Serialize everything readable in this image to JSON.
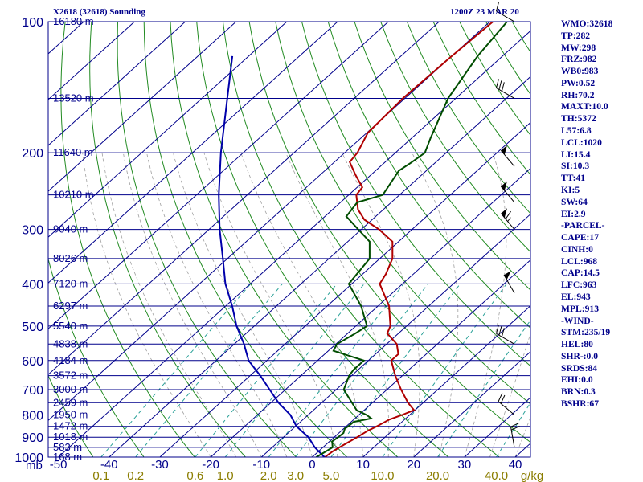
{
  "header": {
    "title": "X2618 (32618) Sounding",
    "valid_time": "1200Z 23 MAR 20"
  },
  "indices": [
    "WMO:32618",
    "TP:282",
    "MW:298",
    "FRZ:982",
    "WB0:983",
    "PW:0.52",
    "RH:70.2",
    "MAXT:10.0",
    "TH:5372",
    "L57:6.8",
    "LCL:1020",
    "LI:15.4",
    "SI:10.3",
    "TT:41",
    "KI:5",
    "SW:64",
    "EI:2.9",
    "-PARCEL-",
    "CAPE:17",
    "CINH:0",
    "LCL:968",
    "CAP:14.5",
    "LFC:963",
    "EL:943",
    "MPL:913",
    "-WIND-",
    "STM:235/19",
    "HEL:80",
    "SHR-:0.0",
    "SRDS:84",
    "EHI:0.0",
    "BRN:0.3",
    "BSHR:67"
  ],
  "colors": {
    "isobar": "#00008b",
    "isotherm": "#00008b",
    "dry_adiabat": "#228b22",
    "moist_adiabat": "#a0a0a0",
    "mixing_ratio": "#2aa198",
    "temperature": "#b00000",
    "dewpoint": "#004d00",
    "parcel": "#0000aa",
    "label": "#00008b",
    "mixing_label": "#8b7d00"
  },
  "chart_data": {
    "type": "skew-t",
    "title": "X2618 (32618) Sounding",
    "pressure_axis": {
      "unit": "mb",
      "range": [
        1000,
        100
      ],
      "ticks": [
        100,
        200,
        300,
        400,
        500,
        600,
        700,
        800,
        900,
        1000
      ]
    },
    "temperature_axis": {
      "ticks": [
        -50,
        -40,
        -30,
        -20,
        -10,
        0,
        10,
        20,
        30,
        40
      ],
      "range_at_1000mb": [
        -52,
        43
      ]
    },
    "mixing_ratio_axis": {
      "unit": "g/kg",
      "ticks": [
        "0.1",
        "0.2",
        "0.6",
        "1.0",
        "2.0",
        "3.0",
        "5.0",
        "10.0",
        "20.0",
        "40.0"
      ]
    },
    "height_labels": [
      {
        "p": 1000,
        "h": "168 m"
      },
      {
        "p": 950,
        "h": "583 m"
      },
      {
        "p": 900,
        "h": "1018 m"
      },
      {
        "p": 850,
        "h": "1472 m"
      },
      {
        "p": 800,
        "h": "1950 m"
      },
      {
        "p": 750,
        "h": "2459 m"
      },
      {
        "p": 700,
        "h": "3000 m"
      },
      {
        "p": 650,
        "h": "3572 m"
      },
      {
        "p": 600,
        "h": "4184 m"
      },
      {
        "p": 550,
        "h": "4838 m"
      },
      {
        "p": 500,
        "h": "5540 m"
      },
      {
        "p": 450,
        "h": "6297 m"
      },
      {
        "p": 400,
        "h": "7120 m"
      },
      {
        "p": 350,
        "h": "8026 m"
      },
      {
        "p": 300,
        "h": "9040 m"
      },
      {
        "p": 250,
        "h": "10210 m"
      },
      {
        "p": 200,
        "h": "11640 m"
      },
      {
        "p": 150,
        "h": "13520 m"
      },
      {
        "p": 100,
        "h": "16180 m"
      }
    ],
    "temperature_profile": [
      {
        "p": 1000,
        "t": 2.5
      },
      {
        "p": 970,
        "t": 2.8
      },
      {
        "p": 940,
        "t": 3.5
      },
      {
        "p": 900,
        "t": 4.5
      },
      {
        "p": 870,
        "t": 5.2
      },
      {
        "p": 850,
        "t": 6.0
      },
      {
        "p": 820,
        "t": 7.0
      },
      {
        "p": 800,
        "t": 8.5
      },
      {
        "p": 780,
        "t": 9.8
      },
      {
        "p": 750,
        "t": 7.0
      },
      {
        "p": 700,
        "t": 2.8
      },
      {
        "p": 650,
        "t": -1.4
      },
      {
        "p": 600,
        "t": -5.5
      },
      {
        "p": 580,
        "t": -5.5
      },
      {
        "p": 550,
        "t": -8.0
      },
      {
        "p": 520,
        "t": -12.2
      },
      {
        "p": 500,
        "t": -13.2
      },
      {
        "p": 450,
        "t": -17.8
      },
      {
        "p": 400,
        "t": -24.5
      },
      {
        "p": 380,
        "t": -25.4
      },
      {
        "p": 350,
        "t": -27.5
      },
      {
        "p": 320,
        "t": -31.2
      },
      {
        "p": 300,
        "t": -36.5
      },
      {
        "p": 285,
        "t": -41.5
      },
      {
        "p": 270,
        "t": -45.0
      },
      {
        "p": 250,
        "t": -48.5
      },
      {
        "p": 240,
        "t": -49.0
      },
      {
        "p": 225,
        "t": -53.0
      },
      {
        "p": 210,
        "t": -57.0
      },
      {
        "p": 200,
        "t": -57.5
      },
      {
        "p": 180,
        "t": -59.8
      },
      {
        "p": 150,
        "t": -60.4
      },
      {
        "p": 120,
        "t": -60.0
      },
      {
        "p": 100,
        "t": -59.4
      }
    ],
    "dewpoint_profile": [
      {
        "p": 1000,
        "td": 0.8
      },
      {
        "p": 970,
        "td": 1.5
      },
      {
        "p": 950,
        "td": 1.9
      },
      {
        "p": 920,
        "td": 0.5
      },
      {
        "p": 900,
        "td": 0.8
      },
      {
        "p": 880,
        "td": 0.9
      },
      {
        "p": 860,
        "td": 0.2
      },
      {
        "p": 850,
        "td": 0.4
      },
      {
        "p": 830,
        "td": 0.5
      },
      {
        "p": 815,
        "td": 3.2
      },
      {
        "p": 800,
        "td": 1.5
      },
      {
        "p": 780,
        "td": -1.5
      },
      {
        "p": 700,
        "td": -8.5
      },
      {
        "p": 650,
        "td": -10.5
      },
      {
        "p": 630,
        "td": -10.9
      },
      {
        "p": 600,
        "td": -10.9
      },
      {
        "p": 570,
        "td": -19.0
      },
      {
        "p": 550,
        "td": -19.8
      },
      {
        "p": 520,
        "td": -18.5
      },
      {
        "p": 500,
        "td": -17.8
      },
      {
        "p": 450,
        "td": -23.3
      },
      {
        "p": 400,
        "td": -30.6
      },
      {
        "p": 350,
        "td": -32.0
      },
      {
        "p": 320,
        "td": -35.7
      },
      {
        "p": 300,
        "td": -40.6
      },
      {
        "p": 280,
        "td": -45.8
      },
      {
        "p": 260,
        "td": -46.7
      },
      {
        "p": 250,
        "td": -43.3
      },
      {
        "p": 220,
        "td": -45.4
      },
      {
        "p": 210,
        "td": -44.7
      },
      {
        "p": 200,
        "td": -44.2
      },
      {
        "p": 185,
        "td": -46.3
      },
      {
        "p": 150,
        "td": -51.5
      },
      {
        "p": 120,
        "td": -54.9
      },
      {
        "p": 100,
        "td": -56.6
      }
    ],
    "parcel_profile": [
      {
        "p": 1000,
        "t": 2.4
      },
      {
        "p": 950,
        "t": -1.6
      },
      {
        "p": 900,
        "t": -5.1
      },
      {
        "p": 850,
        "t": -9.8
      },
      {
        "p": 800,
        "t": -13.5
      },
      {
        "p": 750,
        "t": -18.5
      },
      {
        "p": 700,
        "t": -23.1
      },
      {
        "p": 650,
        "t": -28.0
      },
      {
        "p": 600,
        "t": -33.6
      },
      {
        "p": 550,
        "t": -38.1
      },
      {
        "p": 500,
        "t": -43.5
      },
      {
        "p": 450,
        "t": -48.7
      },
      {
        "p": 400,
        "t": -54.9
      },
      {
        "p": 350,
        "t": -60.9
      },
      {
        "p": 300,
        "t": -67.9
      },
      {
        "p": 250,
        "t": -75.6
      },
      {
        "p": 200,
        "t": -84.4
      },
      {
        "p": 150,
        "t": -95.0
      },
      {
        "p": 120,
        "t": -103.2
      }
    ],
    "wind_barbs": [
      {
        "p": 950,
        "dir": 350,
        "spd": 20
      },
      {
        "p": 800,
        "dir": 310,
        "spd": 20
      },
      {
        "p": 550,
        "dir": 300,
        "spd": 30
      },
      {
        "p": 420,
        "dir": 330,
        "spd": 50
      },
      {
        "p": 300,
        "dir": 320,
        "spd": 65
      },
      {
        "p": 260,
        "dir": 320,
        "spd": 50
      },
      {
        "p": 215,
        "dir": 320,
        "spd": 50
      },
      {
        "p": 150,
        "dir": 300,
        "spd": 30
      },
      {
        "p": 100,
        "dir": 300,
        "spd": 10
      }
    ]
  }
}
